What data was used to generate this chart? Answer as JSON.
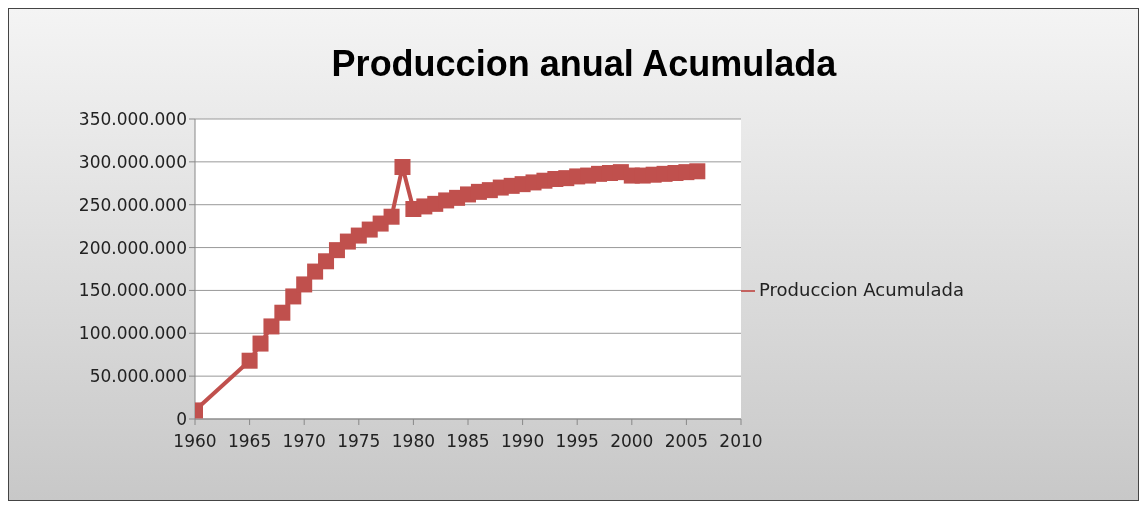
{
  "chart_data": {
    "type": "line",
    "title": "Produccion anual Acumulada",
    "x": [
      1960,
      1965,
      1966,
      1967,
      1968,
      1969,
      1970,
      1971,
      1972,
      1973,
      1974,
      1975,
      1976,
      1977,
      1978,
      1979,
      1980,
      1981,
      1982,
      1983,
      1984,
      1985,
      1986,
      1987,
      1988,
      1989,
      1990,
      1991,
      1992,
      1993,
      1994,
      1995,
      1996,
      1997,
      1998,
      1999,
      2000,
      2001,
      2002,
      2003,
      2004,
      2005,
      2006
    ],
    "series": [
      {
        "name": "Produccion Acumulada",
        "color": "#c0504d",
        "values": [
          10000000,
          68000000,
          88000000,
          108000000,
          124000000,
          143000000,
          157000000,
          172000000,
          184000000,
          197000000,
          207000000,
          214000000,
          221000000,
          228000000,
          236000000,
          294000000,
          245000000,
          248000000,
          251000000,
          255000000,
          258000000,
          262000000,
          265000000,
          267000000,
          270000000,
          272000000,
          274000000,
          276000000,
          278000000,
          280000000,
          281000000,
          283000000,
          284000000,
          286000000,
          287000000,
          288000000,
          284000000,
          284000000,
          285000000,
          286000000,
          287000000,
          288000000,
          289000000
        ]
      }
    ],
    "xlim": [
      1960,
      2010
    ],
    "xticks": [
      1960,
      1965,
      1970,
      1975,
      1980,
      1985,
      1990,
      1995,
      2000,
      2005,
      2010
    ],
    "ylim": [
      0,
      350000000
    ],
    "yticks": [
      0,
      {
        "value": 50000000,
        "label": "50.000.000"
      },
      {
        "value": 100000000,
        "label": "100.000.000"
      },
      {
        "value": 150000000,
        "label": "150.000.000"
      },
      {
        "value": 200000000,
        "label": "200.000.000"
      },
      {
        "value": 250000000,
        "label": "250.000.000"
      },
      {
        "value": 300000000,
        "label": "300.000.000"
      },
      {
        "value": 350000000,
        "label": "350.000.000"
      }
    ],
    "grid": "y",
    "legend": "right",
    "marker": "square",
    "line_style": "solid"
  }
}
